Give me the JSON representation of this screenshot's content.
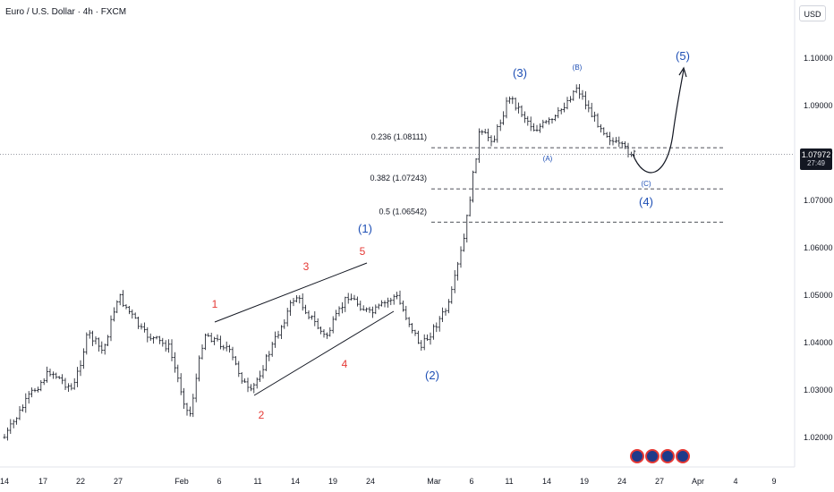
{
  "header": {
    "title": "Euro / U.S. Dollar · 4h · FXCM",
    "currency": "USD"
  },
  "price_tag": {
    "price": "1.07972",
    "countdown": "27:49"
  },
  "chart_data": {
    "type": "candlestick",
    "y_axis": {
      "ticks": [
        "1.10000",
        "1.09000",
        "1.08000",
        "1.07000",
        "1.06000",
        "1.05000",
        "1.04000",
        "1.03000",
        "1.02000"
      ]
    },
    "x_axis": {
      "ticks": [
        "14",
        "17",
        "22",
        "27",
        "Feb",
        "6",
        "11",
        "14",
        "19",
        "24",
        "Mar",
        "6",
        "11",
        "14",
        "19",
        "24",
        "27",
        "Apr",
        "4",
        "9"
      ]
    },
    "current_price": 1.07972,
    "fib_levels": [
      {
        "label": "0.236 (1.08111)",
        "value": 1.08111
      },
      {
        "label": "0.382 (1.07243)",
        "value": 1.07243
      },
      {
        "label": "0.5 (1.06542)",
        "value": 1.06542
      }
    ],
    "wave_labels": [
      {
        "text": "1",
        "color": "#e53935"
      },
      {
        "text": "2",
        "color": "#e53935"
      },
      {
        "text": "3",
        "color": "#e53935"
      },
      {
        "text": "4",
        "color": "#e53935"
      },
      {
        "text": "5",
        "color": "#e53935"
      },
      {
        "text": "(1)",
        "color": "#1e4fb5"
      },
      {
        "text": "(2)",
        "color": "#1e4fb5"
      },
      {
        "text": "(3)",
        "color": "#1e4fb5"
      },
      {
        "text": "(4)",
        "color": "#1e4fb5"
      },
      {
        "text": "(5)",
        "color": "#1e4fb5"
      },
      {
        "text": "(A)",
        "color": "#1e4fb5"
      },
      {
        "text": "(B)",
        "color": "#1e4fb5"
      },
      {
        "text": "(C)",
        "color": "#1e4fb5"
      }
    ],
    "path_anchors": [
      {
        "d": "14",
        "p": 1.02
      },
      {
        "d": "16",
        "p": 1.029
      },
      {
        "d": "18",
        "p": 1.034
      },
      {
        "d": "21",
        "p": 1.03
      },
      {
        "d": "23",
        "p": 1.042
      },
      {
        "d": "25",
        "p": 1.038
      },
      {
        "d": "27",
        "p": 1.05
      },
      {
        "d": "29",
        "p": 1.042
      },
      {
        "d": "31",
        "p": 1.039
      },
      {
        "d": "Feb 2",
        "p": 1.024
      },
      {
        "d": "Feb 4",
        "p": 1.042
      },
      {
        "d": "Feb 7",
        "p": 1.039
      },
      {
        "d": "Feb 10",
        "p": 1.029
      },
      {
        "d": "Feb 14",
        "p": 1.05
      },
      {
        "d": "Feb 18",
        "p": 1.041
      },
      {
        "d": "Feb 21",
        "p": 1.05
      },
      {
        "d": "Feb 24",
        "p": 1.046
      },
      {
        "d": "Feb 26",
        "p": 1.05
      },
      {
        "d": "Feb 28",
        "p": 1.039
      },
      {
        "d": "Mar 3",
        "p": 1.048
      },
      {
        "d": "Mar 5",
        "p": 1.062
      },
      {
        "d": "Mar 7",
        "p": 1.084
      },
      {
        "d": "Mar 9",
        "p": 1.083
      },
      {
        "d": "Mar 11",
        "p": 1.092
      },
      {
        "d": "Mar 13",
        "p": 1.085
      },
      {
        "d": "Mar 15",
        "p": 1.087
      },
      {
        "d": "Mar 18",
        "p": 1.094
      },
      {
        "d": "Mar 20",
        "p": 1.088
      },
      {
        "d": "Mar 23",
        "p": 1.082
      },
      {
        "d": "Mar 25",
        "p": 1.0797
      }
    ]
  }
}
